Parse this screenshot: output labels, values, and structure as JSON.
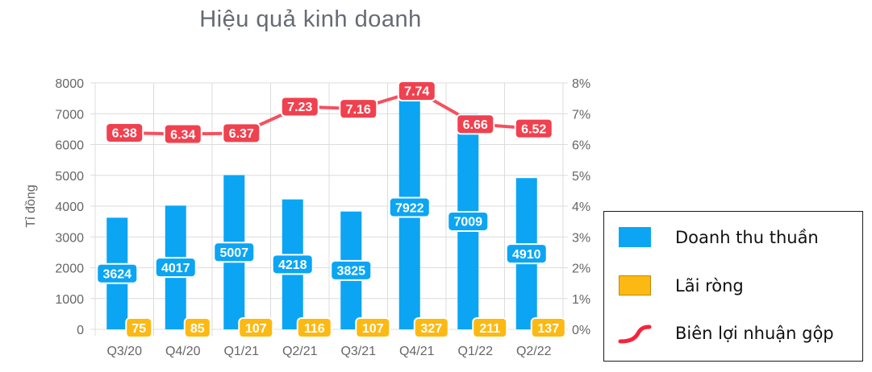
{
  "chart_data": {
    "type": "bar",
    "title": "Hiệu quả kinh doanh",
    "categories": [
      "Q3/20",
      "Q4/20",
      "Q1/21",
      "Q2/21",
      "Q3/21",
      "Q4/21",
      "Q1/22",
      "Q2/22"
    ],
    "ylabel": "Tỉ đồng",
    "ylim": [
      0,
      8000
    ],
    "y_ticks": [
      "0",
      "1000",
      "2000",
      "3000",
      "4000",
      "5000",
      "6000",
      "7000",
      "8000"
    ],
    "y2lim": [
      0,
      8
    ],
    "y2_ticks": [
      "0%",
      "1%",
      "2%",
      "3%",
      "4%",
      "5%",
      "6%",
      "7%",
      "8%"
    ],
    "grid": true,
    "legend_position": "right",
    "series": [
      {
        "name": "Doanh thu thuần",
        "type": "bar",
        "axis": "left",
        "color": "#0ba5f3",
        "label_color": "#0ba5f3",
        "values": [
          3624,
          4017,
          5007,
          4218,
          3825,
          7922,
          7009,
          4910
        ],
        "labels": [
          "3624",
          "4017",
          "5007",
          "4218",
          "3825",
          "7922",
          "7009",
          "4910"
        ]
      },
      {
        "name": "Lãi ròng",
        "type": "bar",
        "axis": "left",
        "color": "#fdb913",
        "label_color": "#fdb913",
        "values": [
          75,
          85,
          107,
          116,
          107,
          327,
          211,
          137
        ],
        "labels": [
          "75",
          "85",
          "107",
          "116",
          "107",
          "327",
          "211",
          "137"
        ]
      },
      {
        "name": "Biên lợi nhuận gộp",
        "type": "line",
        "axis": "right",
        "color": "#f5505f",
        "label_color": "#f0414f",
        "values": [
          6.38,
          6.34,
          6.37,
          7.23,
          7.16,
          7.74,
          6.66,
          6.52
        ],
        "labels": [
          "6.38",
          "6.34",
          "6.37",
          "7.23",
          "7.16",
          "7.74",
          "6.66",
          "6.52"
        ]
      }
    ]
  }
}
